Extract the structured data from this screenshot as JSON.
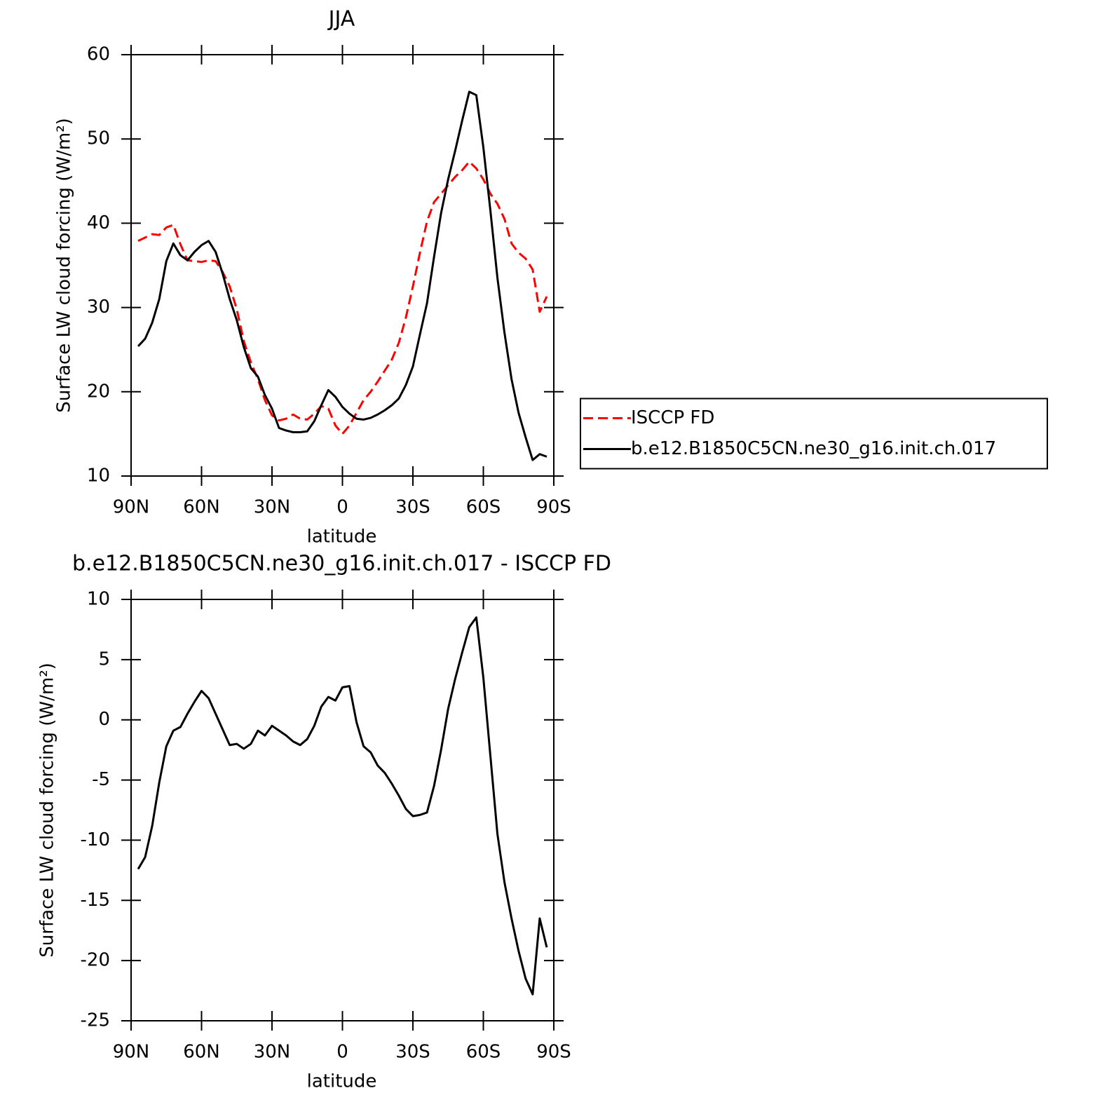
{
  "chart_data": [
    {
      "type": "line",
      "title": "JJA",
      "xlabel": "latitude",
      "ylabel": "Surface LW cloud forcing (W/m²)",
      "x": [
        87,
        84,
        81,
        78,
        75,
        72,
        69,
        66,
        63,
        60,
        57,
        54,
        51,
        48,
        45,
        42,
        39,
        36,
        33,
        30,
        27,
        24,
        21,
        18,
        15,
        12,
        9,
        6,
        3,
        0,
        -3,
        -6,
        -9,
        -12,
        -15,
        -18,
        -21,
        -24,
        -27,
        -30,
        -33,
        -36,
        -39,
        -42,
        -45,
        -48,
        -51,
        -54,
        -57,
        -60,
        -63,
        -66,
        -69,
        -72,
        -75,
        -78,
        -81,
        -84,
        -87
      ],
      "xlim": [
        90,
        -90
      ],
      "xticks": [
        {
          "value": 90,
          "label": "90N"
        },
        {
          "value": 60,
          "label": "60N"
        },
        {
          "value": 30,
          "label": "30N"
        },
        0,
        {
          "value": -30,
          "label": "30S"
        },
        {
          "value": -60,
          "label": "60S"
        },
        {
          "value": -90,
          "label": "90S"
        }
      ],
      "ylim": [
        10,
        60
      ],
      "yticks": [
        10,
        20,
        30,
        40,
        50,
        60
      ],
      "legend": "right",
      "series": [
        {
          "name": "ISCCP FD",
          "color": "#ff0000",
          "dash": "dashed",
          "values": [
            37.9,
            38.3,
            38.7,
            38.6,
            39.5,
            39.8,
            37.5,
            35.6,
            35.5,
            35.4,
            35.6,
            35.5,
            34.2,
            32.5,
            29.8,
            26.0,
            23.5,
            21.5,
            19.0,
            17.2,
            16.6,
            16.8,
            17.3,
            16.8,
            16.7,
            17.4,
            18.3,
            18.0,
            16.0,
            15.0,
            16.0,
            17.5,
            19.0,
            20.0,
            21.2,
            22.5,
            23.8,
            25.8,
            28.8,
            32.5,
            36.5,
            40.2,
            42.5,
            43.5,
            44.5,
            45.5,
            46.3,
            47.3,
            46.5,
            45.2,
            43.5,
            42.3,
            40.5,
            37.6,
            36.5,
            35.8,
            34.5,
            29.5,
            31.3
          ]
        },
        {
          "name": "b.e12.B1850C5CN.ne30_g16.init.ch.017",
          "color": "#000000",
          "values": [
            25.4,
            26.3,
            28.2,
            31.0,
            35.5,
            37.6,
            36.2,
            35.6,
            36.6,
            37.4,
            37.9,
            36.6,
            34.0,
            31.0,
            28.5,
            25.3,
            22.8,
            21.8,
            19.6,
            18.0,
            15.7,
            15.4,
            15.2,
            15.2,
            15.3,
            16.5,
            18.4,
            20.2,
            19.4,
            18.2,
            17.4,
            16.8,
            16.7,
            16.9,
            17.3,
            17.8,
            18.4,
            19.2,
            20.8,
            23.0,
            26.8,
            30.5,
            36.0,
            41.2,
            45.2,
            48.6,
            52.2,
            55.6,
            55.2,
            49.0,
            41.5,
            33.5,
            27.0,
            21.5,
            17.5,
            14.6,
            11.9,
            12.6,
            12.3
          ]
        }
      ]
    },
    {
      "type": "line",
      "title": "b.e12.B1850C5CN.ne30_g16.init.ch.017 - ISCCP FD",
      "xlabel": "latitude",
      "ylabel": "Surface LW cloud forcing (W/m²)",
      "x": [
        87,
        84,
        81,
        78,
        75,
        72,
        69,
        66,
        63,
        60,
        57,
        54,
        51,
        48,
        45,
        42,
        39,
        36,
        33,
        30,
        27,
        24,
        21,
        18,
        15,
        12,
        9,
        6,
        3,
        0,
        -3,
        -6,
        -9,
        -12,
        -15,
        -18,
        -21,
        -24,
        -27,
        -30,
        -33,
        -36,
        -39,
        -42,
        -45,
        -48,
        -51,
        -54,
        -57,
        -60,
        -63,
        -66,
        -69,
        -72,
        -75,
        -78,
        -81,
        -84,
        -87
      ],
      "xlim": [
        90,
        -90
      ],
      "xticks": [
        {
          "value": 90,
          "label": "90N"
        },
        {
          "value": 60,
          "label": "60N"
        },
        {
          "value": 30,
          "label": "30N"
        },
        0,
        {
          "value": -30,
          "label": "30S"
        },
        {
          "value": -60,
          "label": "60S"
        },
        {
          "value": -90,
          "label": "90S"
        }
      ],
      "ylim": [
        -25,
        10
      ],
      "yticks": [
        -25,
        -20,
        -15,
        -10,
        -5,
        0,
        5,
        10
      ],
      "color": "#000000",
      "values": [
        -12.4,
        -11.4,
        -8.8,
        -5.2,
        -2.2,
        -0.9,
        -0.6,
        0.5,
        1.5,
        2.4,
        1.8,
        0.5,
        -0.8,
        -2.1,
        -2.0,
        -2.4,
        -2.0,
        -0.9,
        -1.3,
        -0.5,
        -0.9,
        -1.3,
        -1.8,
        -2.1,
        -1.6,
        -0.5,
        1.1,
        1.9,
        1.6,
        2.7,
        2.8,
        -0.2,
        -2.2,
        -2.7,
        -3.8,
        -4.4,
        -5.3,
        -6.3,
        -7.4,
        -8.0,
        -7.9,
        -7.7,
        -5.5,
        -2.5,
        0.9,
        3.4,
        5.6,
        7.7,
        8.5,
        3.5,
        -3.0,
        -9.5,
        -13.5,
        -16.5,
        -19.2,
        -21.5,
        -22.8,
        -16.5,
        -18.9
      ]
    }
  ]
}
